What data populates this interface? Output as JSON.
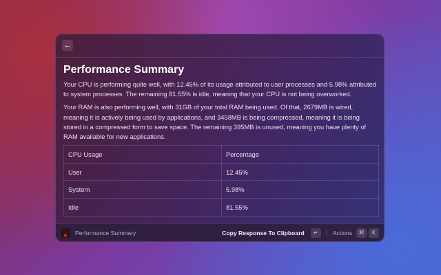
{
  "header": {
    "back_icon": "arrow-left"
  },
  "main": {
    "title": "Performance Summary",
    "paragraphs": [
      "Your CPU is performing quite well, with 12.45% of its usage attributed to user processes and 5.98% attributed to system processes. The remaining 81.55% is idle, meaning that your CPU is not being overworked.",
      "Your RAM is also performing well, with 31GB of your total RAM being used. Of that, 2679MB is wired, meaning it is actively being used by applications, and 3458MB is being compressed, meaning it is being stored in a compressed form to save space. The remaining 395MB is unused, meaning you have plenty of RAM available for new applications."
    ],
    "table": {
      "headers": [
        "CPU Usage",
        "Percentage"
      ],
      "rows": [
        [
          "User",
          "12.45%"
        ],
        [
          "System",
          "5.98%"
        ],
        [
          "Idle",
          "81.55%"
        ]
      ]
    }
  },
  "footer": {
    "title": "Performance Summary",
    "primary_action": "Copy Response To Clipboard",
    "primary_key": "↵",
    "actions_label": "Actions",
    "actions_keys": [
      "⌘",
      "K"
    ]
  }
}
